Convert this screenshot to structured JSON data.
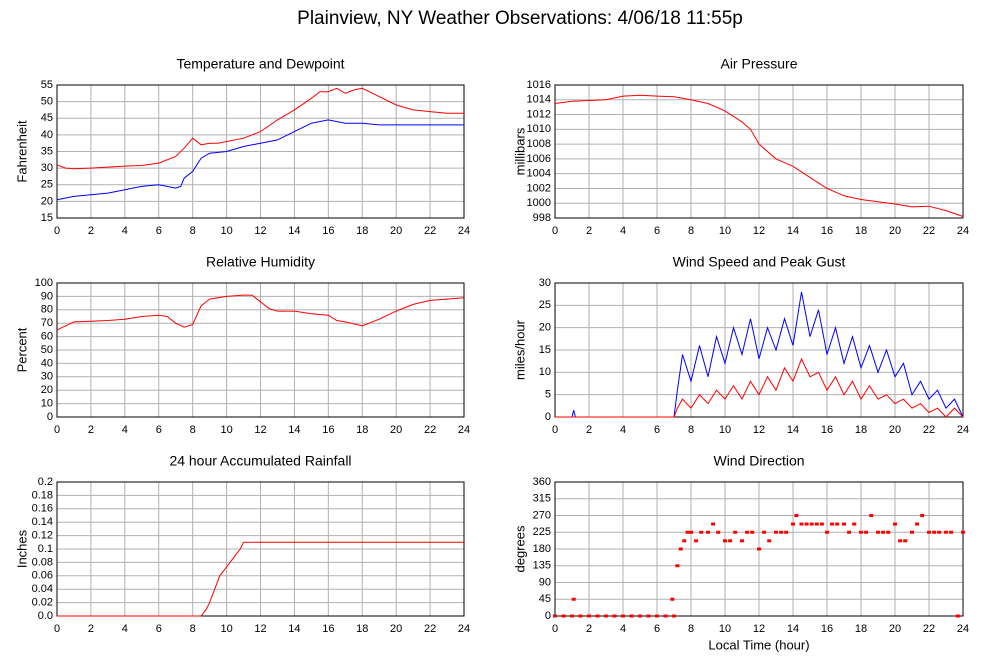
{
  "title": "Plainview, NY Weather Observations: 4/06/18 11:55p",
  "chart_data": [
    {
      "type": "line",
      "title": "Temperature and Dewpoint",
      "ylabel": "Fahrenheit",
      "xlim": [
        0,
        24
      ],
      "xticks": [
        0,
        2,
        4,
        6,
        8,
        10,
        12,
        14,
        16,
        18,
        20,
        22,
        24
      ],
      "ylim": [
        15,
        55
      ],
      "yticks": [
        15,
        20,
        25,
        30,
        35,
        40,
        45,
        50,
        55
      ],
      "grid": true,
      "series": [
        {
          "color": "#ff0000",
          "x": [
            0,
            0.5,
            1,
            2,
            3,
            4,
            5,
            6,
            7,
            7.5,
            8,
            8.5,
            9,
            9.5,
            10,
            11,
            12,
            13,
            14,
            15,
            15.5,
            16,
            16.5,
            17,
            17.5,
            18,
            19,
            20,
            21,
            22,
            23,
            24
          ],
          "values": [
            31,
            30,
            29.8,
            30,
            30.3,
            30.6,
            30.8,
            31.5,
            33.5,
            36,
            39,
            37,
            37.5,
            37.5,
            38,
            39,
            41,
            44.5,
            47.5,
            51,
            53,
            53,
            54,
            52.5,
            53.5,
            54,
            51.5,
            49,
            47.5,
            47,
            46.5,
            46.5
          ]
        },
        {
          "color": "#0000ff",
          "x": [
            0,
            1,
            2,
            3,
            4,
            5,
            6,
            7,
            7.3,
            7.5,
            8,
            8.5,
            9,
            10,
            11,
            12,
            13,
            14,
            15,
            16,
            17,
            18,
            19,
            20,
            21,
            22,
            23,
            24
          ],
          "values": [
            20.5,
            21.5,
            22,
            22.5,
            23.5,
            24.5,
            25,
            24,
            24.5,
            27,
            29,
            33,
            34.5,
            35,
            36.5,
            37.5,
            38.5,
            41,
            43.5,
            44.5,
            43.5,
            43.5,
            43,
            43,
            43,
            43,
            43,
            43
          ]
        }
      ]
    },
    {
      "type": "line",
      "title": "Air Pressure",
      "ylabel": "millibars",
      "xlim": [
        0,
        24
      ],
      "xticks": [
        0,
        2,
        4,
        6,
        8,
        10,
        12,
        14,
        16,
        18,
        20,
        22,
        24
      ],
      "ylim": [
        998,
        1016
      ],
      "yticks": [
        998,
        1000,
        1002,
        1004,
        1006,
        1008,
        1010,
        1012,
        1014,
        1016
      ],
      "grid": true,
      "series": [
        {
          "color": "#ff0000",
          "x": [
            0,
            1,
            2,
            3,
            4,
            5,
            6,
            7,
            8,
            9,
            10,
            11,
            11.5,
            12,
            13,
            14,
            15,
            16,
            17,
            18,
            19,
            20,
            21,
            22,
            23,
            24
          ],
          "values": [
            1013.5,
            1013.8,
            1013.9,
            1014,
            1014.5,
            1014.6,
            1014.5,
            1014.4,
            1014,
            1013.5,
            1012.5,
            1011,
            1010,
            1008,
            1006,
            1005,
            1003.5,
            1002,
            1001,
            1000.5,
            1000.2,
            999.9,
            999.5,
            999.6,
            999,
            998.2
          ]
        }
      ]
    },
    {
      "type": "line",
      "title": "Relative Humidity",
      "ylabel": "Percent",
      "xlim": [
        0,
        24
      ],
      "xticks": [
        0,
        2,
        4,
        6,
        8,
        10,
        12,
        14,
        16,
        18,
        20,
        22,
        24
      ],
      "ylim": [
        0,
        100
      ],
      "yticks": [
        0,
        10,
        20,
        30,
        40,
        50,
        60,
        70,
        80,
        90,
        100
      ],
      "grid": true,
      "series": [
        {
          "color": "#ff0000",
          "x": [
            0,
            0.5,
            1,
            2,
            3,
            4,
            5,
            6,
            6.5,
            7,
            7.5,
            8,
            8.5,
            9,
            10,
            11,
            11.5,
            12,
            12.5,
            13,
            14,
            15,
            16,
            16.5,
            17,
            18,
            19,
            20,
            21,
            22,
            23,
            24
          ],
          "values": [
            65,
            68,
            71,
            71.5,
            72,
            73,
            75,
            76,
            75,
            70,
            67,
            69,
            83,
            88,
            90,
            91,
            91,
            86,
            81,
            79,
            79,
            77,
            76,
            72,
            71,
            68,
            73,
            79,
            84,
            87,
            88,
            89
          ]
        }
      ]
    },
    {
      "type": "line",
      "title": "Wind Speed and Peak Gust",
      "ylabel": "miles/hour",
      "xlim": [
        0,
        24
      ],
      "xticks": [
        0,
        2,
        4,
        6,
        8,
        10,
        12,
        14,
        16,
        18,
        20,
        22,
        24
      ],
      "ylim": [
        0,
        30
      ],
      "yticks": [
        0,
        5,
        10,
        15,
        20,
        25,
        30
      ],
      "grid": true,
      "series": [
        {
          "color": "#0000ff",
          "x": [
            0,
            1,
            1.1,
            1.2,
            7,
            7.2,
            7.5,
            8,
            8.5,
            9,
            9.5,
            10,
            10.5,
            11,
            11.5,
            12,
            12.5,
            13,
            13.5,
            14,
            14.5,
            15,
            15.5,
            16,
            16.5,
            17,
            17.5,
            18,
            18.5,
            19,
            19.5,
            20,
            20.5,
            21,
            21.5,
            22,
            22.5,
            23,
            23.5,
            24
          ],
          "values": [
            0,
            0,
            1.5,
            0,
            0,
            6,
            14,
            8,
            16,
            9,
            18,
            12,
            20,
            14,
            22,
            13,
            20,
            15,
            22,
            16,
            28,
            18,
            24,
            14,
            20,
            12,
            18,
            11,
            16,
            10,
            15,
            9,
            12,
            5,
            8,
            4,
            6,
            2,
            4,
            0
          ]
        },
        {
          "color": "#ff0000",
          "x": [
            0,
            7,
            7.2,
            7.5,
            8,
            8.5,
            9,
            9.5,
            10,
            10.5,
            11,
            11.5,
            12,
            12.5,
            13,
            13.5,
            14,
            14.5,
            15,
            15.5,
            16,
            16.5,
            17,
            17.5,
            18,
            18.5,
            19,
            19.5,
            20,
            20.5,
            21,
            21.5,
            22,
            22.5,
            23,
            23.5,
            24
          ],
          "values": [
            0,
            0,
            2,
            4,
            2,
            5,
            3,
            6,
            4,
            7,
            4,
            8,
            5,
            9,
            6,
            11,
            8,
            13,
            9,
            10,
            6,
            9,
            5,
            8,
            4,
            7,
            4,
            5,
            3,
            4,
            2,
            3,
            1,
            2,
            0,
            2,
            0
          ]
        }
      ]
    },
    {
      "type": "line",
      "title": "24 hour Accumulated Rainfall",
      "ylabel": "Inches",
      "xlim": [
        0,
        24
      ],
      "xticks": [
        0,
        2,
        4,
        6,
        8,
        10,
        12,
        14,
        16,
        18,
        20,
        22,
        24
      ],
      "ylim": [
        0,
        0.2
      ],
      "yticks": [
        {
          "value": 0,
          "label": "0.0"
        },
        0.02,
        0.04,
        0.06,
        0.08,
        0.1,
        0.12,
        0.14,
        0.16,
        0.18,
        0.2
      ],
      "grid": true,
      "series": [
        {
          "color": "#ff0000",
          "x": [
            0,
            8.5,
            8.8,
            9,
            9.3,
            9.6,
            9.9,
            10.2,
            10.5,
            10.8,
            11,
            24
          ],
          "values": [
            0,
            0,
            0.01,
            0.02,
            0.04,
            0.06,
            0.07,
            0.08,
            0.09,
            0.1,
            0.11,
            0.11
          ]
        }
      ]
    },
    {
      "type": "scatter",
      "title": "Wind Direction",
      "ylabel": "degrees",
      "xlabel": "Local Time (hour)",
      "xlim": [
        0,
        24
      ],
      "xticks": [
        0,
        2,
        4,
        6,
        8,
        10,
        12,
        14,
        16,
        18,
        20,
        22,
        24
      ],
      "ylim": [
        0,
        360
      ],
      "yticks": [
        0,
        45,
        90,
        135,
        180,
        225,
        270,
        315,
        360
      ],
      "grid": true,
      "series": [
        {
          "color": "#ff0000",
          "x": [
            0,
            0.5,
            1,
            1.1,
            1.5,
            2,
            2.5,
            3,
            3.5,
            4,
            4.5,
            5,
            5.5,
            6,
            6.5,
            6.9,
            7,
            7.2,
            7.4,
            7.6,
            7.8,
            8,
            8.3,
            8.6,
            9,
            9.3,
            9.6,
            10,
            10.3,
            10.6,
            11,
            11.3,
            11.6,
            12,
            12.3,
            12.6,
            13,
            13.3,
            13.6,
            14,
            14.2,
            14.5,
            14.8,
            15.1,
            15.4,
            15.7,
            16,
            16.3,
            16.6,
            17,
            17.3,
            17.6,
            18,
            18.3,
            18.6,
            19,
            19.3,
            19.6,
            20,
            20.3,
            20.6,
            21,
            21.3,
            21.6,
            22,
            22.3,
            22.6,
            23,
            23.3,
            23.7,
            24
          ],
          "values": [
            0,
            0,
            0,
            45,
            0,
            0,
            0,
            0,
            0,
            0,
            0,
            0,
            0,
            0,
            0,
            45,
            0,
            135,
            180,
            202,
            225,
            225,
            202,
            225,
            225,
            247,
            225,
            202,
            202,
            225,
            202,
            225,
            225,
            180,
            225,
            202,
            225,
            225,
            225,
            247,
            270,
            247,
            247,
            247,
            247,
            247,
            225,
            247,
            247,
            247,
            225,
            247,
            225,
            225,
            270,
            225,
            225,
            225,
            247,
            202,
            202,
            225,
            247,
            270,
            225,
            225,
            225,
            225,
            225,
            0,
            225
          ]
        }
      ]
    }
  ]
}
